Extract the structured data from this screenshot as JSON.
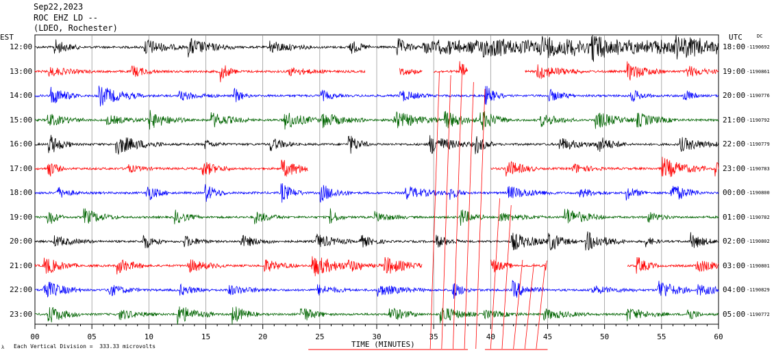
{
  "header": {
    "date": "Sep22,2023",
    "station": "ROC EHZ LD --",
    "location": "(LDEO, Rochester)"
  },
  "labels": {
    "left_zone": "EST",
    "right_zone": "UTC",
    "dc": "DC",
    "footer_note": "Each Vertical Division =  333.33 microvolts",
    "footer_mark": "λ"
  },
  "chart_data": {
    "type": "line",
    "title": "",
    "xlabel": "TIME (MINUTES)",
    "ylabel": "",
    "xlim": [
      0,
      60
    ],
    "x_ticks": [
      "00",
      "05",
      "10",
      "15",
      "20",
      "25",
      "30",
      "35",
      "40",
      "45",
      "50",
      "55",
      "60"
    ],
    "x_tick_values": [
      0,
      5,
      10,
      15,
      20,
      25,
      30,
      35,
      40,
      45,
      50,
      55,
      60
    ],
    "grid": true,
    "trace_colors": [
      "#000000",
      "#ff0000",
      "#0000ff",
      "#006400"
    ],
    "rows": [
      {
        "local": "12:00",
        "utc": "18:00",
        "dc": "-1190692"
      },
      {
        "local": "13:00",
        "utc": "19:00",
        "dc": "-1190861"
      },
      {
        "local": "14:00",
        "utc": "20:00",
        "dc": "-1190776"
      },
      {
        "local": "15:00",
        "utc": "21:00",
        "dc": "-1190792"
      },
      {
        "local": "16:00",
        "utc": "22:00",
        "dc": "-1190779"
      },
      {
        "local": "17:00",
        "utc": "23:00",
        "dc": "-1190783"
      },
      {
        "local": "18:00",
        "utc": "00:00",
        "dc": "-1190800"
      },
      {
        "local": "19:00",
        "utc": "01:00",
        "dc": "-1190782"
      },
      {
        "local": "20:00",
        "utc": "02:00",
        "dc": "-1190802"
      },
      {
        "local": "21:00",
        "utc": "03:00",
        "dc": "-1190801"
      },
      {
        "local": "22:00",
        "utc": "04:00",
        "dc": "-1190829"
      },
      {
        "local": "23:00",
        "utc": "05:00",
        "dc": "-1190772"
      }
    ],
    "gaps_minutes": [
      {
        "row": 1,
        "from": 29,
        "to": 32
      },
      {
        "row": 1,
        "from": 34,
        "to": 35
      },
      {
        "row": 1,
        "from": 38,
        "to": 43
      },
      {
        "row": 5,
        "from": 24,
        "to": 40
      },
      {
        "row": 9,
        "from": 34,
        "to": 40
      },
      {
        "row": 9,
        "from": 45,
        "to": 52
      }
    ]
  }
}
